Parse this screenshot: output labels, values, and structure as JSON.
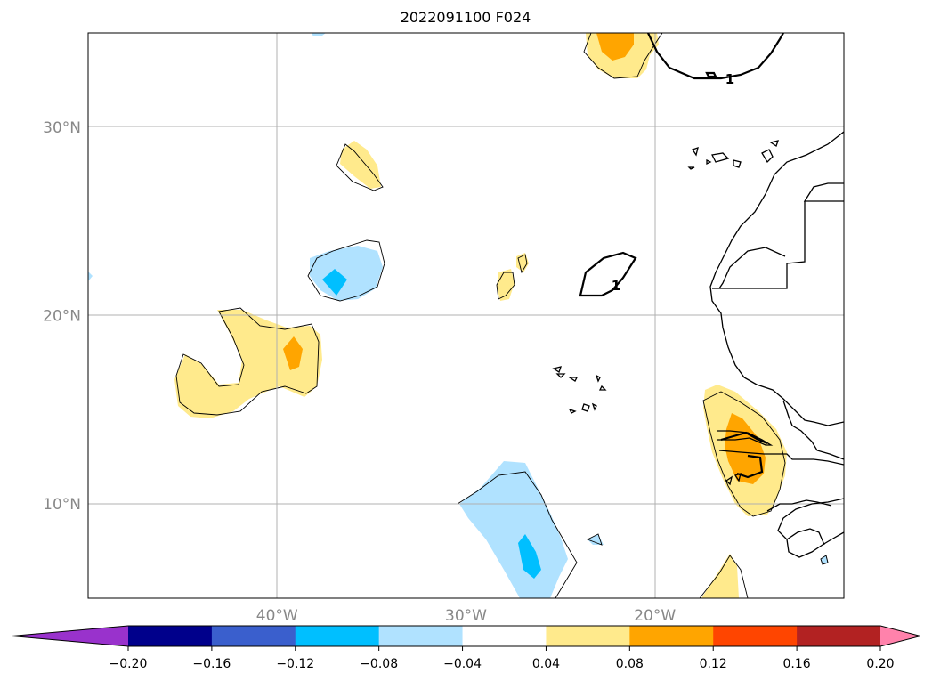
{
  "chart_data": {
    "type": "map",
    "title": "2022091100 F024",
    "projection": "PlateCarree",
    "extent": {
      "lon": [
        -50,
        -10
      ],
      "lat": [
        5,
        35
      ]
    },
    "gridlines": true,
    "lat_ticks": [
      {
        "value": 30,
        "label": "30°N"
      },
      {
        "value": 20,
        "label": "20°N"
      },
      {
        "value": 10,
        "label": "10°N"
      }
    ],
    "lon_ticks": [
      {
        "value": -40,
        "label": "40°W"
      },
      {
        "value": -30,
        "label": "30°W"
      },
      {
        "value": -20,
        "label": "20°W"
      }
    ],
    "colorbar": {
      "orientation": "horizontal",
      "extend": "both",
      "levels": [
        -0.24,
        -0.2,
        -0.16,
        -0.12,
        -0.08,
        -0.04,
        0.04,
        0.08,
        0.12,
        0.16,
        0.2,
        0.24
      ],
      "colors": [
        "#9932cc",
        "#00008b",
        "#3a5fcd",
        "#00bfff",
        "#b0e2ff",
        "#ffffff",
        "#ffea8c",
        "#ffa500",
        "#ff4500",
        "#b22222",
        "#ff82ab"
      ],
      "tick_values": [
        -0.2,
        -0.16,
        -0.12,
        -0.08,
        -0.04,
        0.04,
        0.08,
        0.12,
        0.16,
        0.2
      ],
      "tick_labels": [
        "−0.20",
        "−0.16",
        "−0.12",
        "−0.08",
        "−0.04",
        "0.04",
        "0.08",
        "0.12",
        "0.16",
        "0.20"
      ]
    },
    "contour_labels": [
      "1",
      "1"
    ]
  }
}
